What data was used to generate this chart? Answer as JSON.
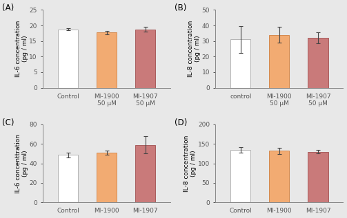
{
  "panels": [
    {
      "label": "(A)",
      "ylabel": "IL-6 concentration\n(pg / ml)",
      "categories": [
        "Control",
        "MI-1900\n50 μM",
        "MI-1907\n50 μM"
      ],
      "values": [
        18.8,
        17.8,
        18.8
      ],
      "errors": [
        0.3,
        0.55,
        0.75
      ],
      "colors": [
        "#ffffff",
        "#f2ab72",
        "#c97a7a"
      ],
      "ylim": [
        0,
        25
      ],
      "yticks": [
        0,
        5,
        10,
        15,
        20,
        25
      ],
      "edgecolors": [
        "#aaaaaa",
        "#d08040",
        "#a05050"
      ]
    },
    {
      "label": "(B)",
      "ylabel": "IL-8 concentration\n(pg / ml)",
      "categories": [
        "control",
        "MI-1900\n50 μM",
        "MI-1907\n50 μM"
      ],
      "values": [
        31.0,
        34.0,
        32.0
      ],
      "errors": [
        8.5,
        5.0,
        3.5
      ],
      "colors": [
        "#ffffff",
        "#f2ab72",
        "#c97a7a"
      ],
      "ylim": [
        0,
        50
      ],
      "yticks": [
        0,
        10,
        20,
        30,
        40,
        50
      ],
      "edgecolors": [
        "#aaaaaa",
        "#d08040",
        "#a05050"
      ]
    },
    {
      "label": "(C)",
      "ylabel": "IL-6 concenttration\n(pg / ml)",
      "categories": [
        "Control",
        "MI-1900",
        "MI-1907"
      ],
      "values": [
        48.5,
        51.0,
        59.0
      ],
      "errors": [
        2.5,
        2.0,
        9.0
      ],
      "colors": [
        "#ffffff",
        "#f2ab72",
        "#c97a7a"
      ],
      "ylim": [
        0,
        80
      ],
      "yticks": [
        0,
        20,
        40,
        60,
        80
      ],
      "edgecolors": [
        "#aaaaaa",
        "#d08040",
        "#a05050"
      ]
    },
    {
      "label": "(D)",
      "ylabel": "IL-8 concentration\n(pg / ml)",
      "categories": [
        "Control",
        "MI-1900",
        "MI-1907"
      ],
      "values": [
        135.0,
        132.0,
        130.0
      ],
      "errors": [
        7.0,
        8.0,
        4.0
      ],
      "colors": [
        "#ffffff",
        "#f2ab72",
        "#c97a7a"
      ],
      "ylim": [
        0,
        200
      ],
      "yticks": [
        0,
        50,
        100,
        150,
        200
      ],
      "edgecolors": [
        "#aaaaaa",
        "#d08040",
        "#a05050"
      ]
    }
  ],
  "background_color": "#e8e8e8",
  "plot_bg_color": "#e8e8e8",
  "bar_width": 0.52,
  "fontsize_label": 6.5,
  "fontsize_tick": 6.5,
  "fontsize_panel": 8.5
}
